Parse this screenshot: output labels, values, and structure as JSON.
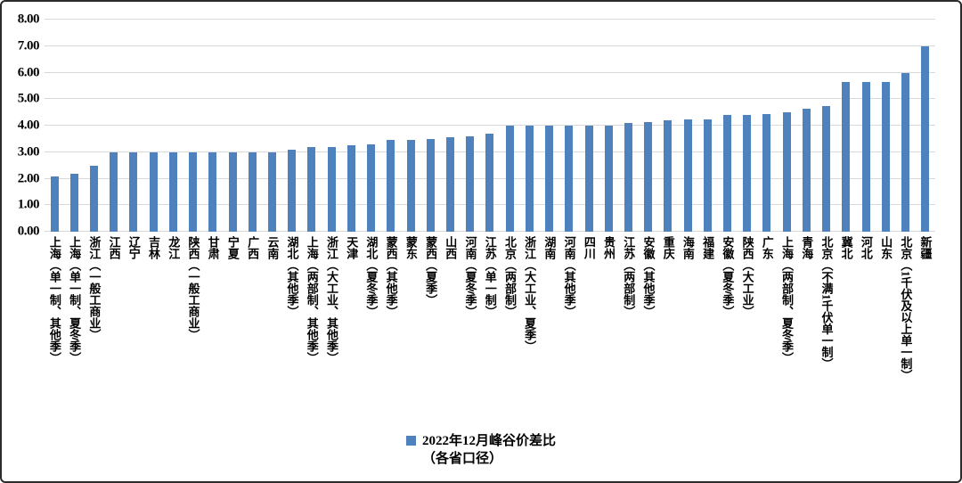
{
  "chart_data": {
    "type": "bar",
    "title": "",
    "legend_line1": "2022年12月峰谷价差比",
    "legend_line2": "（各省口径）",
    "bar_color": "#4F81BD",
    "gridline_color": "#D9D9D9",
    "ylim": [
      0,
      8
    ],
    "ytick_step": 1,
    "yticks": [
      "0.00",
      "1.00",
      "2.00",
      "3.00",
      "4.00",
      "5.00",
      "6.00",
      "7.00",
      "8.00"
    ],
    "grid": true,
    "legend_position": "bottom-center",
    "categories": [
      "上海（单一制、其他季）",
      "上海（单一制、夏冬季）",
      "浙江（一般工商业）",
      "江西",
      "辽宁",
      "吉林",
      "龙江",
      "陕西（一般工商业）",
      "甘肃",
      "宁夏",
      "广西",
      "云南",
      "湖北（其他季）",
      "上海（两部制、其他季）",
      "浙江（大工业、其他季）",
      "天津",
      "湖北（夏冬季）",
      "蒙西（其他季）",
      "蒙东",
      "蒙西（夏季）",
      "山西",
      "河南（夏冬季）",
      "江苏（单一制）",
      "北京（两部制）",
      "浙江（大工业、夏季）",
      "湖南",
      "河南（其他季）",
      "四川",
      "贵州",
      "江苏（两部制）",
      "安徽（其他季）",
      "重庆",
      "海南",
      "福建",
      "安徽（夏冬季）",
      "陕西（大工业）",
      "广东",
      "上海（两部制、夏冬季）",
      "青海",
      "北京（不满1千伏单一制）",
      "冀北",
      "河北",
      "山东",
      "北京（1千伏及以上单一制）",
      "新疆"
    ],
    "values": [
      2.1,
      2.2,
      2.5,
      3.0,
      3.0,
      3.0,
      3.0,
      3.0,
      3.0,
      3.0,
      3.0,
      3.0,
      3.1,
      3.2,
      3.2,
      3.25,
      3.3,
      3.45,
      3.45,
      3.5,
      3.55,
      3.6,
      3.7,
      4.0,
      4.0,
      4.0,
      4.0,
      4.0,
      4.0,
      4.1,
      4.15,
      4.2,
      4.25,
      4.25,
      4.4,
      4.4,
      4.45,
      4.5,
      4.65,
      4.75,
      5.65,
      5.65,
      5.65,
      6.0,
      7.0
    ]
  }
}
